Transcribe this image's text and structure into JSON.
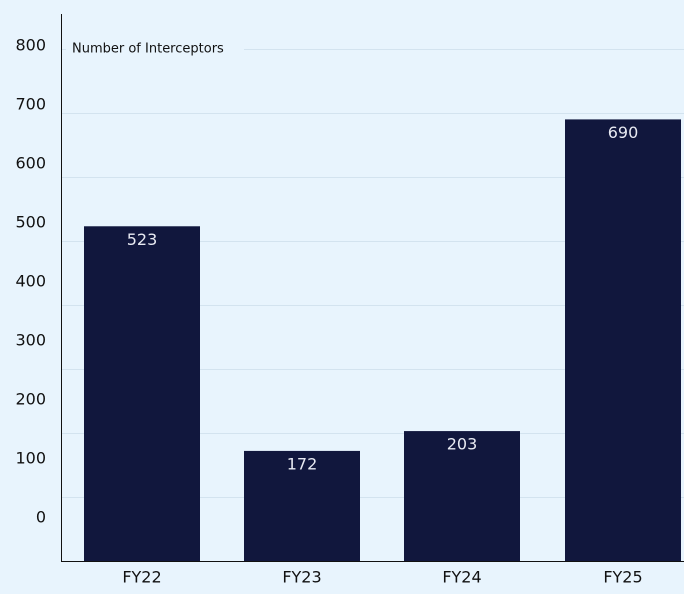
{
  "chart_data": {
    "type": "bar",
    "title": "Number of Interceptors",
    "xlabel": "",
    "ylabel": "Number of Interceptors",
    "categories": [
      "FY22",
      "FY23",
      "FY24",
      "FY25"
    ],
    "values": [
      523,
      172,
      203,
      690
    ],
    "data_labels": [
      "523",
      "172",
      "203",
      "690"
    ],
    "yticks": [
      "0",
      "100",
      "200",
      "300",
      "400",
      "500",
      "600",
      "700",
      "800"
    ],
    "ylim": [
      0,
      800
    ],
    "grid": true,
    "colors": {
      "bar": "#11173d",
      "background": "#e8f4fd",
      "grid": "#d3e3ef"
    }
  }
}
